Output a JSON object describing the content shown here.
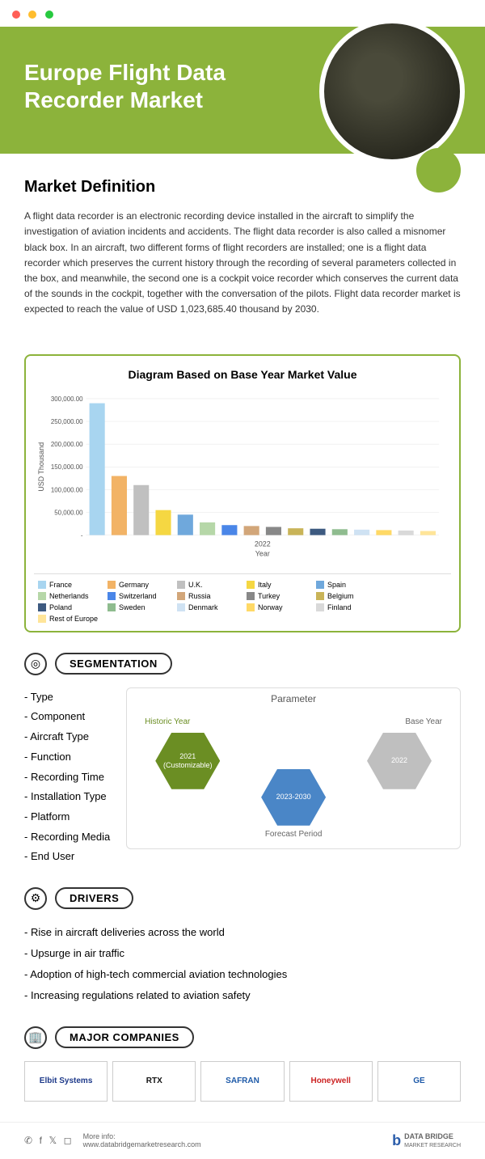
{
  "hero": {
    "title": "Europe Flight Data Recorder Market"
  },
  "definition": {
    "heading": "Market Definition",
    "body": "A flight data recorder is an electronic recording device installed in the aircraft to simplify the investigation of aviation incidents and accidents. The flight data recorder is also called a misnomer black box. In an aircraft, two different forms of flight recorders are installed; one is a flight data recorder which preserves the current history through the recording of several parameters collected in the box, and meanwhile, the second one is a cockpit voice recorder which conserves the current data of the sounds in the cockpit, together with the conversation of the pilots. Flight data recorder market is expected to reach the value of USD 1,023,685.40 thousand by 2030."
  },
  "chart": {
    "title": "Diagram Based on Base Year Market Value",
    "ylabel": "USD Thousand",
    "xlabel": "Year",
    "xtick": "2022",
    "ymax": 300000,
    "yticks": [
      "-",
      "50,000.00",
      "100,000.00",
      "150,000.00",
      "200,000.00",
      "250,000.00",
      "300,000.00"
    ],
    "series": [
      {
        "label": "France",
        "value": 290000,
        "color": "#a8d5f0"
      },
      {
        "label": "Germany",
        "value": 130000,
        "color": "#f2b366"
      },
      {
        "label": "U.K.",
        "value": 110000,
        "color": "#c0c0c0"
      },
      {
        "label": "Italy",
        "value": 55000,
        "color": "#f5d742"
      },
      {
        "label": "Spain",
        "value": 45000,
        "color": "#6fa8dc"
      },
      {
        "label": "Netherlands",
        "value": 28000,
        "color": "#b6d7a8"
      },
      {
        "label": "Switzerland",
        "value": 22000,
        "color": "#4a86e8"
      },
      {
        "label": "Russia",
        "value": 20000,
        "color": "#d2a679"
      },
      {
        "label": "Turkey",
        "value": 18000,
        "color": "#888888"
      },
      {
        "label": "Belgium",
        "value": 15000,
        "color": "#c9b458"
      },
      {
        "label": "Poland",
        "value": 14000,
        "color": "#3d5a80"
      },
      {
        "label": "Sweden",
        "value": 13000,
        "color": "#8fbc8f"
      },
      {
        "label": "Denmark",
        "value": 12000,
        "color": "#cfe2f3"
      },
      {
        "label": "Norway",
        "value": 11000,
        "color": "#ffd966"
      },
      {
        "label": "Finland",
        "value": 10000,
        "color": "#d9d9d9"
      },
      {
        "label": "Rest of Europe",
        "value": 9000,
        "color": "#ffe599"
      }
    ]
  },
  "segmentation": {
    "pill": "SEGMENTATION",
    "items": [
      "Type",
      "Component",
      "Aircraft Type",
      "Function",
      "Recording Time",
      "Installation Type",
      "Platform",
      "Recording Media",
      "End User"
    ],
    "parameter": {
      "title": "Parameter",
      "historic_label": "Historic Year",
      "base_label": "Base Year",
      "forecast_label": "Forecast Period",
      "historic_value": "2021 (Customizable)",
      "base_value": "2022",
      "forecast_value": "2023-2030",
      "historic_color": "#6b8e23",
      "forecast_color": "#4a86c7",
      "base_color": "#bfbfbf"
    }
  },
  "drivers": {
    "pill": "DRIVERS",
    "items": [
      "Rise in aircraft deliveries across the world",
      "Upsurge in air traffic",
      "Adoption of high-tech commercial aviation technologies",
      "Increasing regulations related to aviation safety"
    ]
  },
  "companies": {
    "pill": "MAJOR COMPANIES",
    "list": [
      {
        "name": "Elbit Systems",
        "color": "#1e3a8a"
      },
      {
        "name": "RTX",
        "color": "#111111"
      },
      {
        "name": "SAFRAN",
        "color": "#1e5aa8"
      },
      {
        "name": "Honeywell",
        "color": "#cc2222"
      },
      {
        "name": "GE",
        "color": "#1e5aa8"
      }
    ]
  },
  "footer": {
    "more_info": "More info:",
    "url": "www.databridgemarketresearch.com",
    "brand_top": "DATA BRIDGE",
    "brand_sub": "MARKET RESEARCH"
  }
}
